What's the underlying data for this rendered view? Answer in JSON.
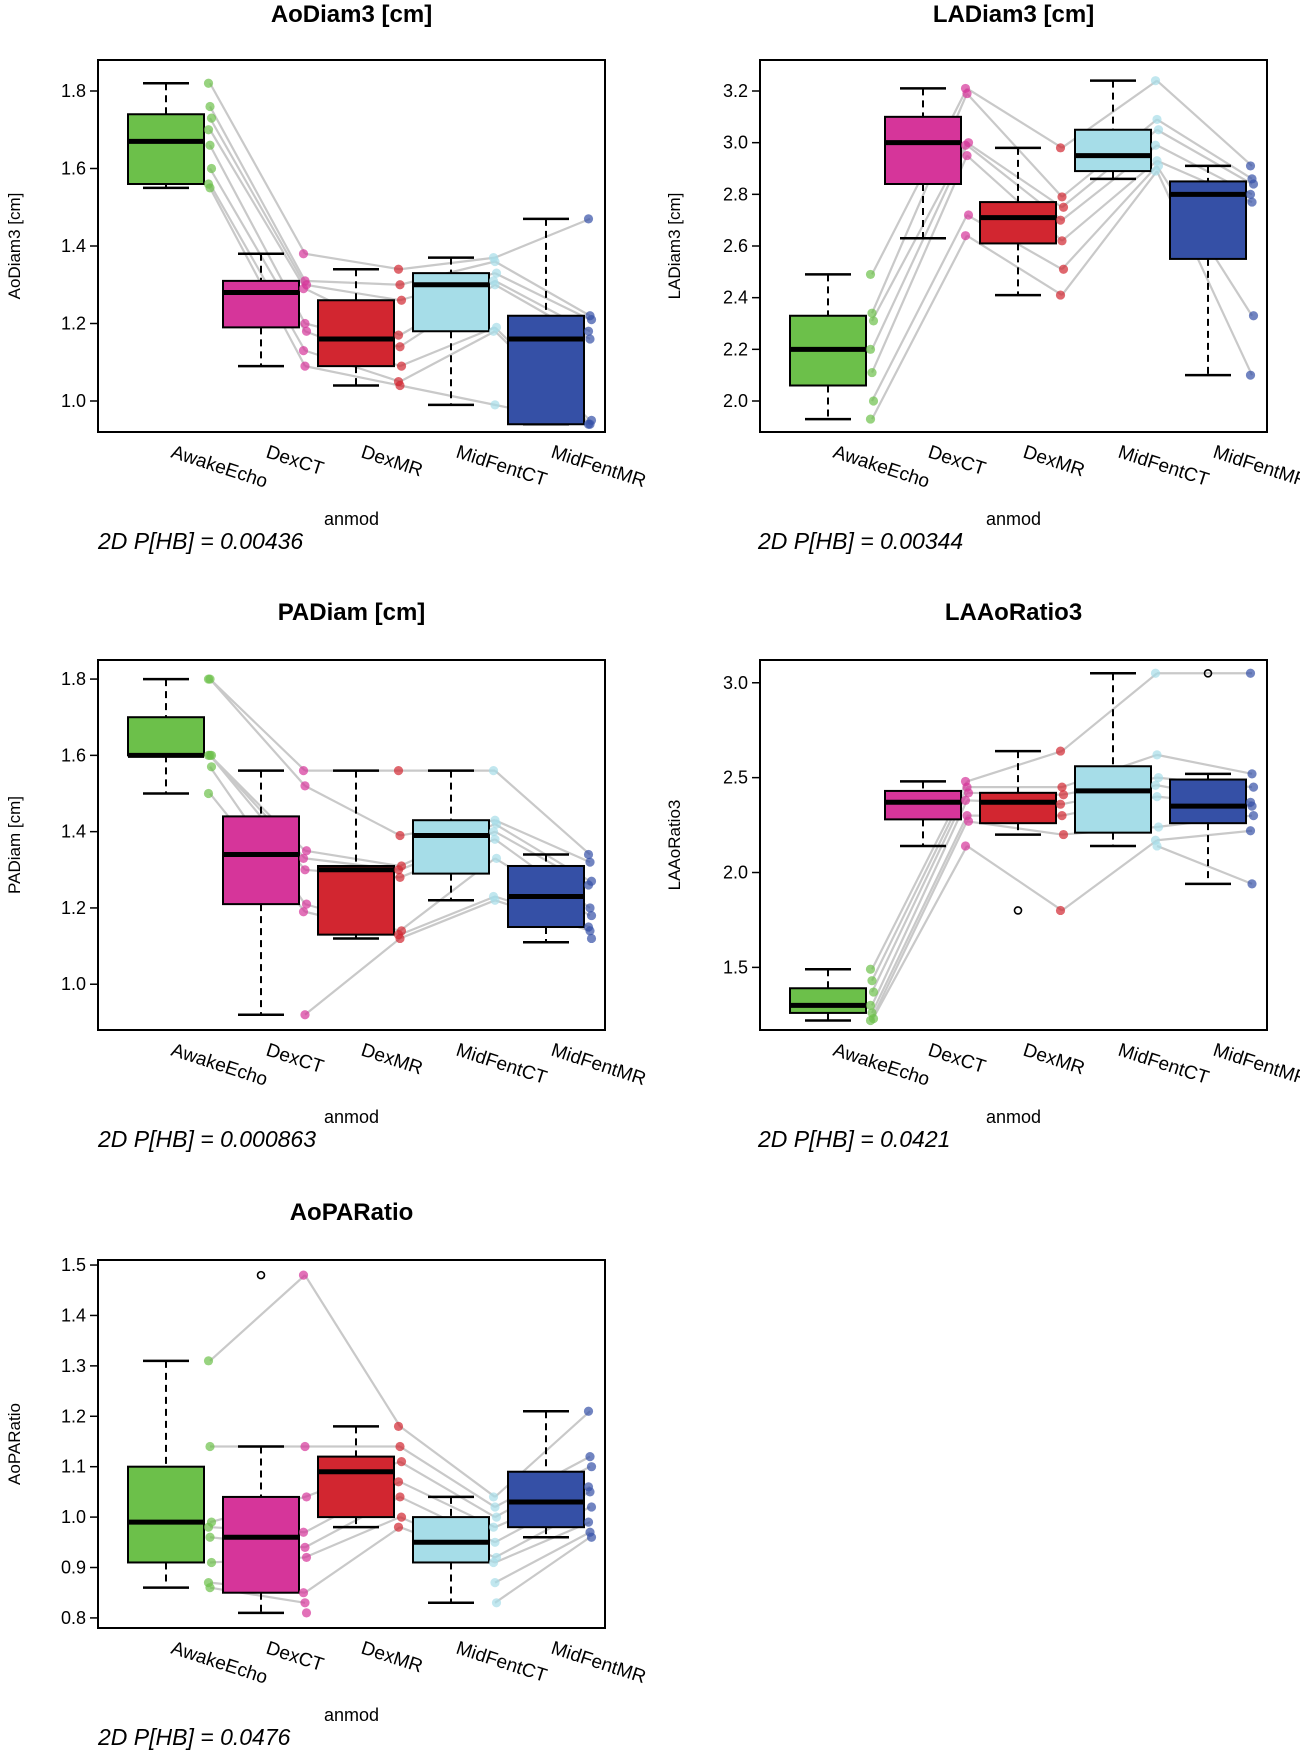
{
  "chart_data": [
    {
      "type": "box",
      "title": "AoDiam3 [cm]",
      "ylabel": "AoDiam3 [cm]",
      "xlabel": "anmod",
      "annotation": "2D P[HB] =  0.00436",
      "ylim": [
        0.92,
        1.88
      ],
      "yticks": [
        "1.0",
        "1.2",
        "1.4",
        "1.6",
        "1.8"
      ],
      "categories": [
        "AwakeEcho",
        "DexCT",
        "DexMR",
        "MidFentCT",
        "MidFentMR"
      ],
      "colors": [
        "#6cc04a",
        "#d6359a",
        "#d22630",
        "#a6dde8",
        "#3550a6"
      ],
      "boxes": [
        {
          "whislo": 1.55,
          "q1": 1.56,
          "med": 1.67,
          "q3": 1.74,
          "whishi": 1.82,
          "outliers": []
        },
        {
          "whislo": 1.09,
          "q1": 1.19,
          "med": 1.28,
          "q3": 1.31,
          "whishi": 1.38,
          "outliers": []
        },
        {
          "whislo": 1.04,
          "q1": 1.09,
          "med": 1.16,
          "q3": 1.26,
          "whishi": 1.34,
          "outliers": []
        },
        {
          "whislo": 0.99,
          "q1": 1.18,
          "med": 1.3,
          "q3": 1.33,
          "whishi": 1.37,
          "outliers": []
        },
        {
          "whislo": 0.94,
          "q1": 0.94,
          "med": 1.16,
          "q3": 1.22,
          "whishi": 1.47,
          "outliers": []
        }
      ],
      "points": [
        [
          1.82,
          1.76,
          1.73,
          1.7,
          1.66,
          1.6,
          1.56,
          1.55
        ],
        [
          1.38,
          1.31,
          1.3,
          1.29,
          1.2,
          1.18,
          1.13,
          1.09
        ],
        [
          1.34,
          1.3,
          1.26,
          1.17,
          1.14,
          1.09,
          1.05,
          1.04
        ],
        [
          1.37,
          1.36,
          1.33,
          1.31,
          1.3,
          1.19,
          1.18,
          0.99
        ],
        [
          1.47,
          1.22,
          1.21,
          1.18,
          1.16,
          0.95,
          0.94,
          0.94
        ]
      ]
    },
    {
      "type": "box",
      "title": "LADiam3 [cm]",
      "ylabel": "LADiam3 [cm]",
      "xlabel": "anmod",
      "annotation": "2D P[HB] =  0.00344",
      "ylim": [
        1.88,
        3.32
      ],
      "yticks": [
        "2.0",
        "2.2",
        "2.4",
        "2.6",
        "2.8",
        "3.0",
        "3.2"
      ],
      "categories": [
        "AwakeEcho",
        "DexCT",
        "DexMR",
        "MidFentCT",
        "MidFentMR"
      ],
      "colors": [
        "#6cc04a",
        "#d6359a",
        "#d22630",
        "#a6dde8",
        "#3550a6"
      ],
      "boxes": [
        {
          "whislo": 1.93,
          "q1": 2.06,
          "med": 2.2,
          "q3": 2.33,
          "whishi": 2.49,
          "outliers": []
        },
        {
          "whislo": 2.63,
          "q1": 2.84,
          "med": 3.0,
          "q3": 3.1,
          "whishi": 3.21,
          "outliers": []
        },
        {
          "whislo": 2.41,
          "q1": 2.61,
          "med": 2.71,
          "q3": 2.77,
          "whishi": 2.98,
          "outliers": []
        },
        {
          "whislo": 2.86,
          "q1": 2.89,
          "med": 2.95,
          "q3": 3.05,
          "whishi": 3.24,
          "outliers": []
        },
        {
          "whislo": 2.1,
          "q1": 2.55,
          "med": 2.8,
          "q3": 2.85,
          "whishi": 2.91,
          "outliers": []
        }
      ],
      "points": [
        [
          2.49,
          2.34,
          2.31,
          2.2,
          2.11,
          2.0,
          1.93
        ],
        [
          3.21,
          3.19,
          3.0,
          2.99,
          2.95,
          2.72,
          2.64
        ],
        [
          2.98,
          2.79,
          2.75,
          2.7,
          2.62,
          2.51,
          2.41
        ],
        [
          3.24,
          3.09,
          3.05,
          2.99,
          2.93,
          2.91,
          2.89
        ],
        [
          2.91,
          2.86,
          2.84,
          2.8,
          2.77,
          2.33,
          2.1
        ]
      ]
    },
    {
      "type": "box",
      "title": "PADiam [cm]",
      "ylabel": "PADiam [cm]",
      "xlabel": "anmod",
      "annotation": "2D P[HB] =  0.000863",
      "ylim": [
        0.88,
        1.85
      ],
      "yticks": [
        "1.0",
        "1.2",
        "1.4",
        "1.6",
        "1.8"
      ],
      "categories": [
        "AwakeEcho",
        "DexCT",
        "DexMR",
        "MidFentCT",
        "MidFentMR"
      ],
      "colors": [
        "#6cc04a",
        "#d6359a",
        "#d22630",
        "#a6dde8",
        "#3550a6"
      ],
      "boxes": [
        {
          "whislo": 1.5,
          "q1": 1.6,
          "med": 1.6,
          "q3": 1.7,
          "whishi": 1.8,
          "outliers": []
        },
        {
          "whislo": 0.92,
          "q1": 1.21,
          "med": 1.34,
          "q3": 1.44,
          "whishi": 1.56,
          "outliers": []
        },
        {
          "whislo": 1.12,
          "q1": 1.13,
          "med": 1.3,
          "q3": 1.31,
          "whishi": 1.56,
          "outliers": []
        },
        {
          "whislo": 1.22,
          "q1": 1.29,
          "med": 1.39,
          "q3": 1.43,
          "whishi": 1.56,
          "outliers": []
        },
        {
          "whislo": 1.11,
          "q1": 1.15,
          "med": 1.23,
          "q3": 1.31,
          "whishi": 1.34,
          "outliers": []
        }
      ],
      "points": [
        [
          1.8,
          1.8,
          1.6,
          1.6,
          1.6,
          1.57,
          1.5
        ],
        [
          1.56,
          1.52,
          1.35,
          1.33,
          1.3,
          1.21,
          1.19,
          0.92
        ],
        [
          1.56,
          1.39,
          1.31,
          1.3,
          1.28,
          1.14,
          1.13,
          1.12
        ],
        [
          1.56,
          1.43,
          1.42,
          1.4,
          1.38,
          1.33,
          1.23,
          1.22
        ],
        [
          1.34,
          1.32,
          1.27,
          1.26,
          1.2,
          1.18,
          1.15,
          1.14,
          1.12
        ]
      ]
    },
    {
      "type": "box",
      "title": "LAAoRatio3",
      "ylabel": "LAAoRatio3",
      "xlabel": "anmod",
      "annotation": "2D P[HB] =  0.0421",
      "ylim": [
        1.17,
        3.12
      ],
      "yticks": [
        "1.5",
        "2.0",
        "2.5",
        "3.0"
      ],
      "categories": [
        "AwakeEcho",
        "DexCT",
        "DexMR",
        "MidFentCT",
        "MidFentMR"
      ],
      "colors": [
        "#6cc04a",
        "#d6359a",
        "#d22630",
        "#a6dde8",
        "#3550a6"
      ],
      "boxes": [
        {
          "whislo": 1.22,
          "q1": 1.26,
          "med": 1.3,
          "q3": 1.39,
          "whishi": 1.49,
          "outliers": []
        },
        {
          "whislo": 2.14,
          "q1": 2.28,
          "med": 2.37,
          "q3": 2.43,
          "whishi": 2.48,
          "outliers": []
        },
        {
          "whislo": 2.2,
          "q1": 2.26,
          "med": 2.37,
          "q3": 2.42,
          "whishi": 2.64,
          "outliers": [
            1.8
          ]
        },
        {
          "whislo": 2.14,
          "q1": 2.21,
          "med": 2.43,
          "q3": 2.56,
          "whishi": 3.05,
          "outliers": []
        },
        {
          "whislo": 1.94,
          "q1": 2.26,
          "med": 2.35,
          "q3": 2.49,
          "whishi": 2.52,
          "outliers": [
            3.05
          ]
        }
      ],
      "points": [
        [
          1.49,
          1.43,
          1.37,
          1.3,
          1.26,
          1.23,
          1.22
        ],
        [
          2.48,
          2.45,
          2.42,
          2.38,
          2.3,
          2.27,
          2.14
        ],
        [
          2.64,
          2.45,
          2.41,
          2.36,
          2.3,
          2.2,
          1.8
        ],
        [
          3.05,
          2.62,
          2.5,
          2.46,
          2.4,
          2.24,
          2.17,
          2.14
        ],
        [
          3.05,
          2.52,
          2.45,
          2.37,
          2.35,
          2.3,
          2.22,
          1.94
        ]
      ]
    },
    {
      "type": "box",
      "title": "AoPARatio",
      "ylabel": "AoPARatio",
      "xlabel": "anmod",
      "annotation": "2D P[HB] =  0.0476",
      "ylim": [
        0.78,
        1.51
      ],
      "yticks": [
        "0.8",
        "0.9",
        "1.0",
        "1.1",
        "1.2",
        "1.3",
        "1.4",
        "1.5"
      ],
      "categories": [
        "AwakeEcho",
        "DexCT",
        "DexMR",
        "MidFentCT",
        "MidFentMR"
      ],
      "colors": [
        "#6cc04a",
        "#d6359a",
        "#d22630",
        "#a6dde8",
        "#3550a6"
      ],
      "boxes": [
        {
          "whislo": 0.86,
          "q1": 0.91,
          "med": 0.99,
          "q3": 1.1,
          "whishi": 1.31,
          "outliers": []
        },
        {
          "whislo": 0.81,
          "q1": 0.85,
          "med": 0.96,
          "q3": 1.04,
          "whishi": 1.14,
          "outliers": [
            1.48
          ]
        },
        {
          "whislo": 0.98,
          "q1": 1.0,
          "med": 1.09,
          "q3": 1.12,
          "whishi": 1.18,
          "outliers": []
        },
        {
          "whislo": 0.83,
          "q1": 0.91,
          "med": 0.95,
          "q3": 1.0,
          "whishi": 1.04,
          "outliers": []
        },
        {
          "whislo": 0.96,
          "q1": 0.98,
          "med": 1.03,
          "q3": 1.09,
          "whishi": 1.21,
          "outliers": []
        }
      ],
      "points": [
        [
          1.31,
          1.14,
          0.99,
          0.98,
          0.96,
          0.91,
          0.87,
          0.86
        ],
        [
          1.48,
          1.14,
          1.04,
          0.97,
          0.94,
          0.92,
          0.85,
          0.83,
          0.81
        ],
        [
          1.18,
          1.14,
          1.11,
          1.07,
          1.04,
          1.0,
          0.98
        ],
        [
          1.04,
          1.02,
          1.0,
          0.98,
          0.95,
          0.92,
          0.91,
          0.87,
          0.83
        ],
        [
          1.21,
          1.12,
          1.1,
          1.06,
          1.05,
          1.02,
          0.99,
          0.97,
          0.96
        ]
      ]
    }
  ]
}
